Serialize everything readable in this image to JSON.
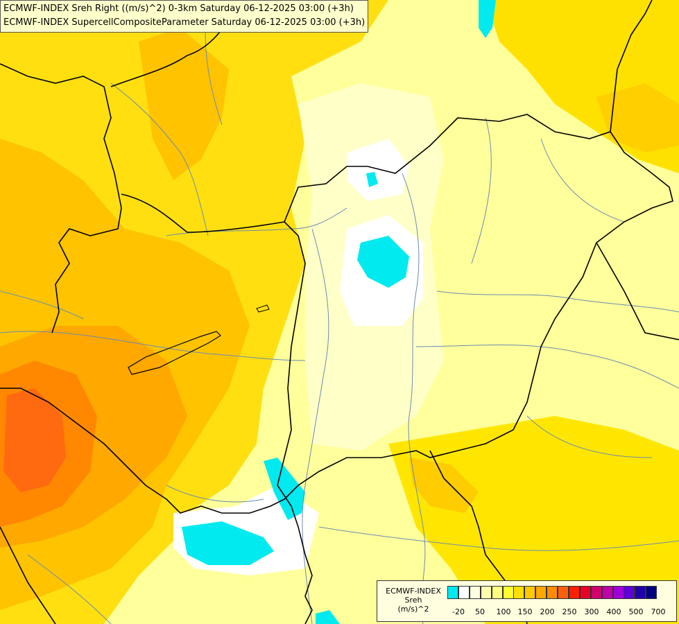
{
  "header": {
    "line1": "ECMWF-INDEX Sreh Right ((m/s)^2) 0-3km Saturday 06-12-2025 03:00 (+3h)",
    "line2": "ECMWF-INDEX SupercellCompositeParameter Saturday 06-12-2025 03:00 (+3h)"
  },
  "legend": {
    "title_line1": "ECMWF-INDEX",
    "title_line2": "Sreh",
    "title_line3": "(m/s)^2",
    "swatches": [
      "#00e8f0",
      "#ffffff",
      "#ffffe0",
      "#ffffb0",
      "#ffff80",
      "#ffff30",
      "#ffe000",
      "#ffc800",
      "#ffa800",
      "#ff8c00",
      "#ff6010",
      "#ff2000",
      "#e80028",
      "#d0006a",
      "#c000a8",
      "#a000d8",
      "#6000d8",
      "#2000a8",
      "#000080"
    ],
    "ticks": [
      "-20",
      "50",
      "100",
      "150",
      "200",
      "250",
      "300",
      "400",
      "500",
      "700"
    ]
  }
}
